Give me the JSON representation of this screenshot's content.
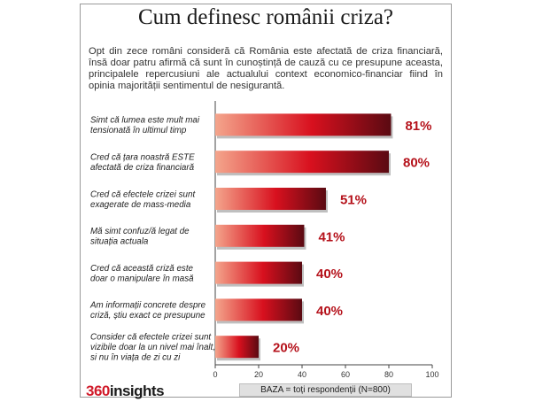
{
  "header": {
    "title": "Cum definesc românii criza?",
    "intro": "Opt din zece români consideră că România este afectată de criza financiară, însă doar patru afirmă că sunt în cunoștință de cauză cu ce presupune aceasta, principalele repercusiuni ale actualului context economico-financiar fiind în opinia majorității sentimentul de nesigurantă."
  },
  "chart_data": {
    "type": "bar",
    "orientation": "horizontal",
    "categories": [
      [
        "Simt că lumea este mult mai",
        "tensionată în ultimul timp"
      ],
      [
        "Cred că țara noastră ESTE",
        "afectată de criza financiară"
      ],
      [
        "Cred că efectele crizei sunt",
        "exagerate de mass-media"
      ],
      [
        "Mă simt confuz/ă legat de",
        "situația actuala"
      ],
      [
        "Cred că această criză este",
        "doar o manipulare în masă"
      ],
      [
        "Am informații concrete despre",
        "criză, știu exact ce presupune"
      ],
      [
        "Consider că efectele crizei sunt",
        "vizibile doar la un nivel mai înalt,",
        "si nu în viața de zi cu zi"
      ]
    ],
    "values": [
      81,
      80,
      51,
      41,
      40,
      40,
      20
    ],
    "value_labels": [
      "81%",
      "80%",
      "51%",
      "41%",
      "40%",
      "40%",
      "20%"
    ],
    "xlim": [
      0,
      100
    ],
    "xticks": [
      "0",
      "20",
      "40",
      "60",
      "80",
      "100"
    ],
    "colors": {
      "bar_start": "#f4a58c",
      "bar_mid": "#d8101e",
      "bar_end": "#5a0a12",
      "value_label": "#b5121b"
    }
  },
  "footer": {
    "logo_number": "360",
    "logo_word": "insights",
    "base_note": "BAZA = toți respondenții (N=800)"
  }
}
